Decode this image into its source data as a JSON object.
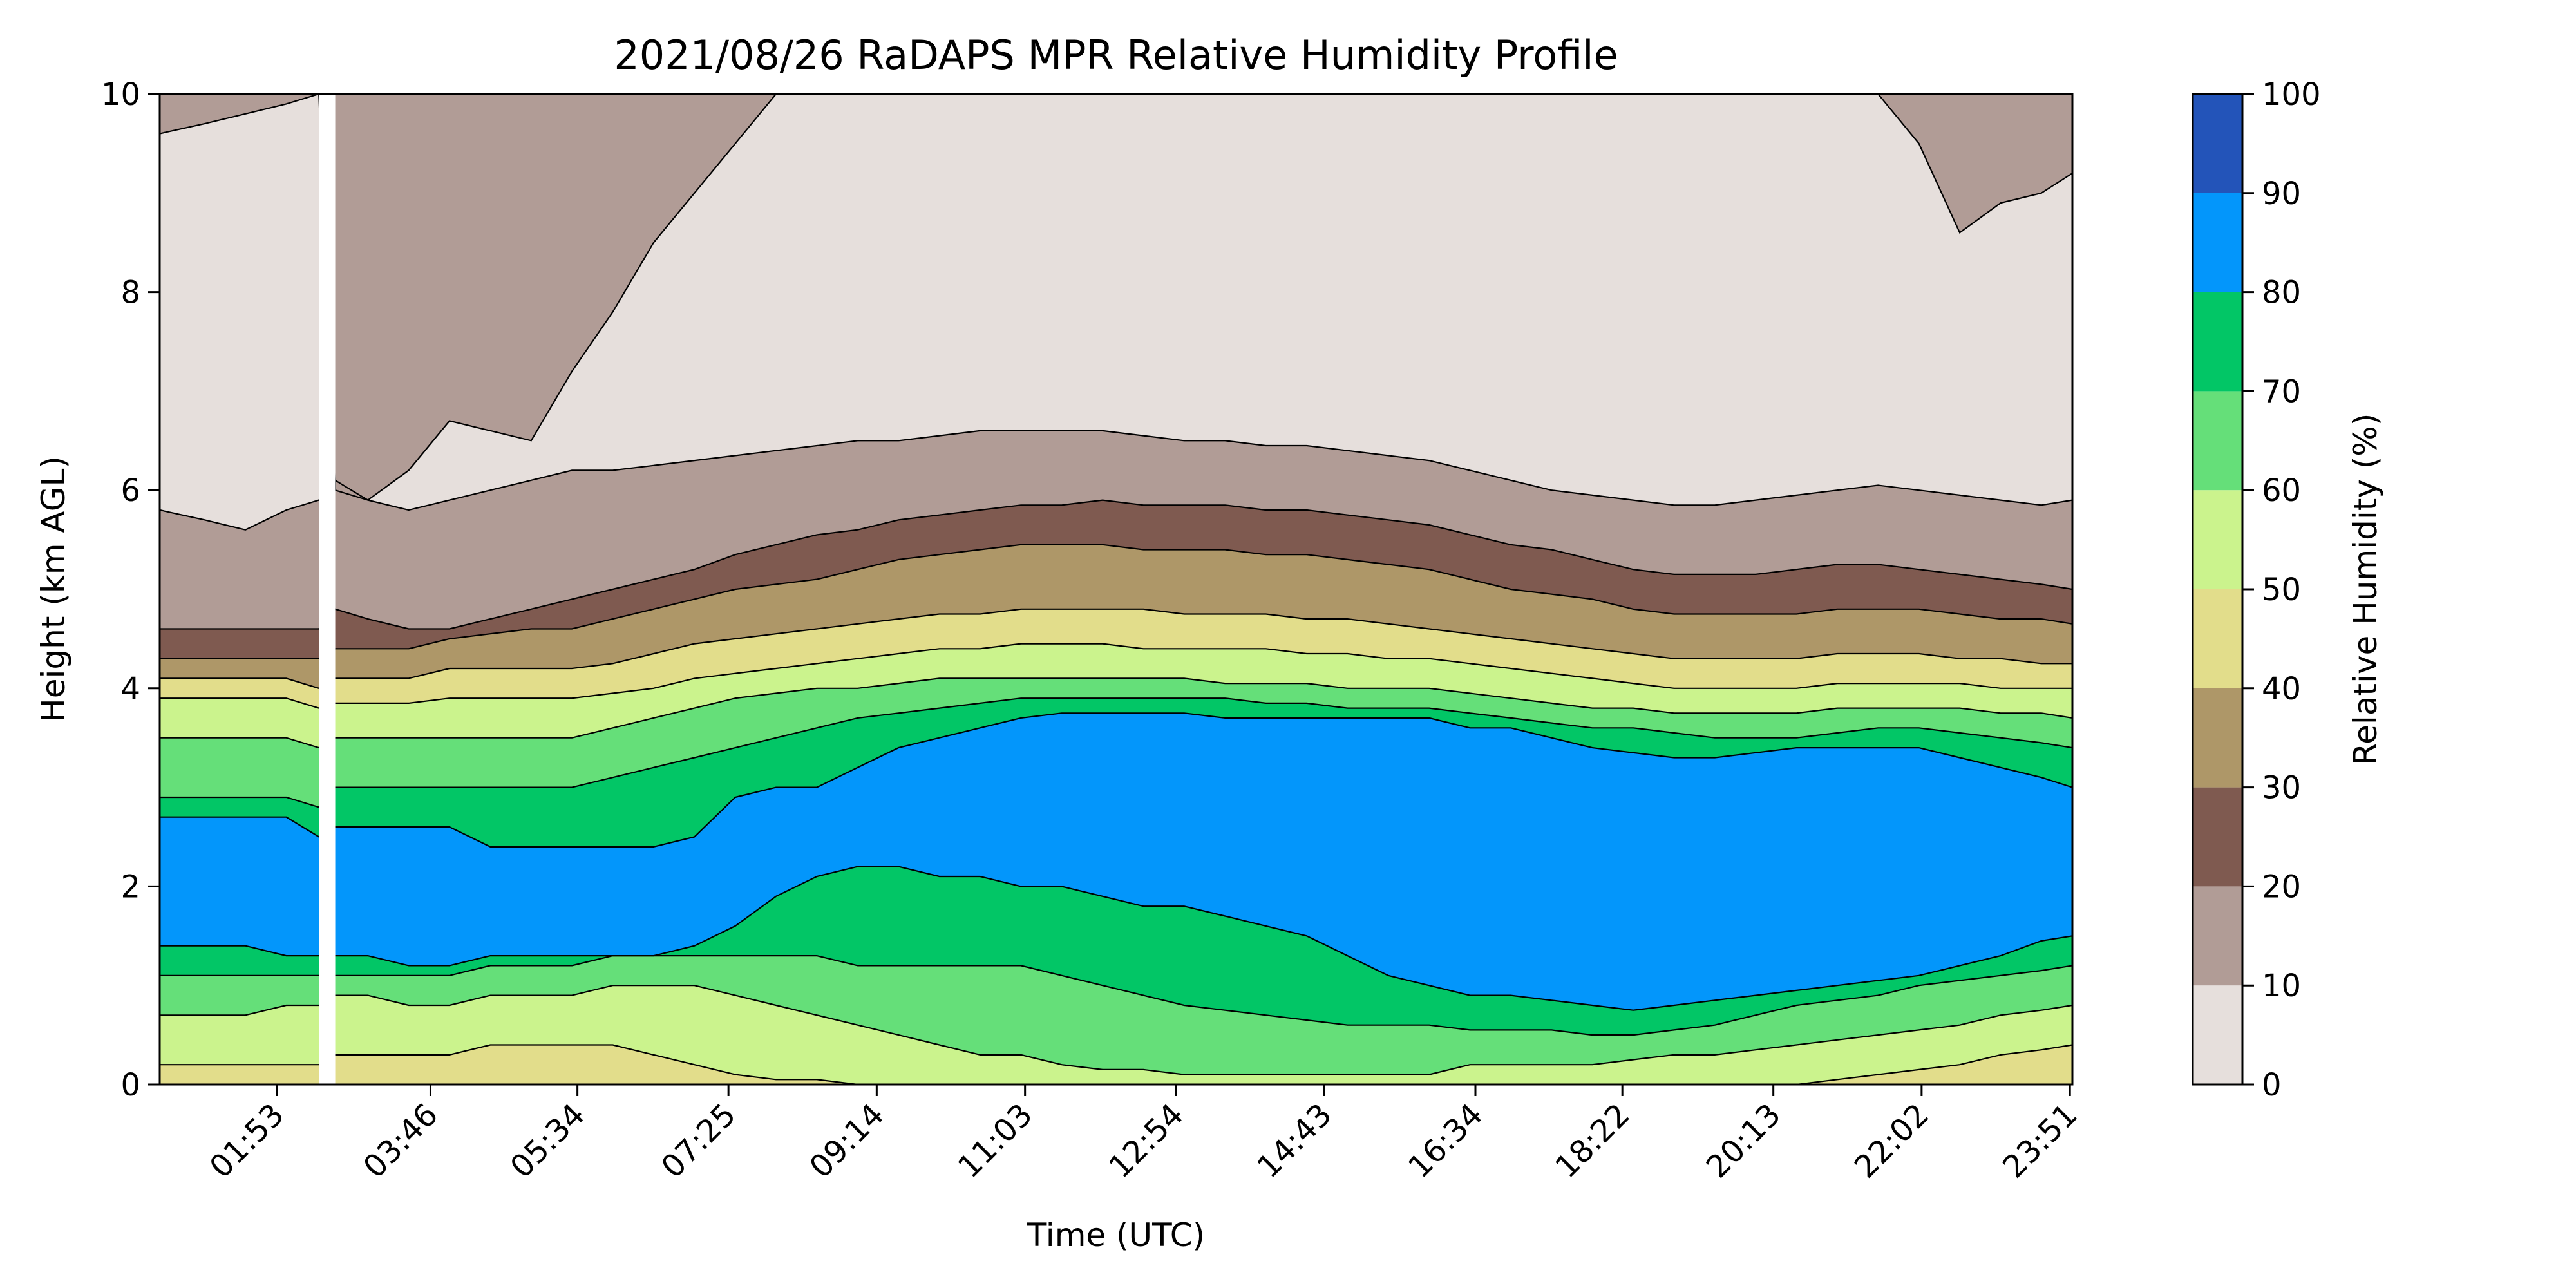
{
  "chart_data": {
    "type": "heatmap",
    "title": "2021/08/26 RaDAPS MPR Relative Humidity Profile",
    "xlabel": "Time (UTC)",
    "ylabel": "Height (km AGL)",
    "x_unit": "hours UTC",
    "xlim": [
      0.45,
      23.88
    ],
    "ylim": [
      0,
      10
    ],
    "x_ticks": [
      {
        "label": "01:53",
        "value": 1.883
      },
      {
        "label": "03:46",
        "value": 3.767
      },
      {
        "label": "05:34",
        "value": 5.567
      },
      {
        "label": "07:25",
        "value": 7.417
      },
      {
        "label": "09:14",
        "value": 9.233
      },
      {
        "label": "11:03",
        "value": 11.05
      },
      {
        "label": "12:54",
        "value": 12.9
      },
      {
        "label": "14:43",
        "value": 14.717
      },
      {
        "label": "16:34",
        "value": 16.567
      },
      {
        "label": "18:22",
        "value": 18.367
      },
      {
        "label": "20:13",
        "value": 20.217
      },
      {
        "label": "22:02",
        "value": 22.033
      },
      {
        "label": "23:51",
        "value": 23.85
      }
    ],
    "y_ticks": [
      0,
      2,
      4,
      6,
      8,
      10
    ],
    "colorbar": {
      "label": "Relative Humidity (%)",
      "levels": [
        0,
        10,
        20,
        30,
        40,
        50,
        60,
        70,
        80,
        90,
        100
      ],
      "colors": [
        "#e6dfdc",
        "#b19c96",
        "#7f5a50",
        "#ae9768",
        "#e2dd8b",
        "#cbf38d",
        "#65df79",
        "#02c666",
        "#0396fb",
        "#2354b9"
      ]
    },
    "data_gap_hours": [
      2.4,
      2.6
    ],
    "x_times": [
      0.45,
      1.0,
      1.5,
      2.0,
      2.4,
      2.6,
      3.0,
      3.5,
      4.0,
      4.5,
      5.0,
      5.5,
      6.0,
      6.5,
      7.0,
      7.5,
      8.0,
      8.5,
      9.0,
      9.5,
      10.0,
      10.5,
      11.0,
      11.5,
      12.0,
      12.5,
      13.0,
      13.5,
      14.0,
      14.5,
      15.0,
      15.5,
      16.0,
      16.5,
      17.0,
      17.5,
      18.0,
      18.5,
      19.0,
      19.5,
      20.0,
      20.5,
      21.0,
      21.5,
      22.0,
      22.5,
      23.0,
      23.5,
      23.88
    ],
    "contour_boundaries_km": [
      {
        "rh": 90,
        "lower": [
          1.4,
          1.4,
          1.4,
          1.3,
          1.3,
          1.3,
          1.3,
          1.2,
          1.2,
          1.3,
          1.3,
          1.3,
          1.3,
          1.3,
          1.4,
          1.6,
          1.9,
          2.1,
          2.2,
          2.2,
          2.1,
          2.1,
          2.0,
          2.0,
          1.9,
          1.8,
          1.8,
          1.7,
          1.6,
          1.5,
          1.3,
          1.1,
          1.0,
          0.9,
          0.9,
          0.85,
          0.8,
          0.75,
          0.8,
          0.85,
          0.9,
          0.95,
          1.0,
          1.05,
          1.1,
          1.2,
          1.3,
          1.45,
          1.5
        ],
        "upper": [
          2.7,
          2.7,
          2.7,
          2.7,
          2.5,
          2.6,
          2.6,
          2.6,
          2.6,
          2.4,
          2.4,
          2.4,
          2.4,
          2.4,
          2.5,
          2.9,
          3.0,
          3.0,
          3.2,
          3.4,
          3.5,
          3.6,
          3.7,
          3.75,
          3.75,
          3.75,
          3.75,
          3.7,
          3.7,
          3.7,
          3.7,
          3.7,
          3.7,
          3.6,
          3.6,
          3.5,
          3.4,
          3.35,
          3.3,
          3.3,
          3.35,
          3.4,
          3.4,
          3.4,
          3.4,
          3.3,
          3.2,
          3.1,
          3.0
        ]
      },
      {
        "rh": 80,
        "lower": [
          1.1,
          1.1,
          1.1,
          1.1,
          1.1,
          1.1,
          1.1,
          1.1,
          1.1,
          1.2,
          1.2,
          1.2,
          1.3,
          1.3,
          1.3,
          1.3,
          1.3,
          1.3,
          1.2,
          1.2,
          1.2,
          1.2,
          1.2,
          1.1,
          1.0,
          0.9,
          0.8,
          0.75,
          0.7,
          0.65,
          0.6,
          0.6,
          0.6,
          0.55,
          0.55,
          0.55,
          0.5,
          0.5,
          0.55,
          0.6,
          0.7,
          0.8,
          0.85,
          0.9,
          1.0,
          1.05,
          1.1,
          1.15,
          1.2
        ],
        "upper": [
          2.9,
          2.9,
          2.9,
          2.9,
          2.8,
          3.0,
          3.0,
          3.0,
          3.0,
          3.0,
          3.0,
          3.0,
          3.1,
          3.2,
          3.3,
          3.4,
          3.5,
          3.6,
          3.7,
          3.75,
          3.8,
          3.85,
          3.9,
          3.9,
          3.9,
          3.9,
          3.9,
          3.9,
          3.85,
          3.85,
          3.8,
          3.8,
          3.8,
          3.75,
          3.7,
          3.65,
          3.6,
          3.6,
          3.55,
          3.5,
          3.5,
          3.5,
          3.55,
          3.6,
          3.6,
          3.55,
          3.5,
          3.45,
          3.4
        ]
      },
      {
        "rh": 70,
        "lower": [
          0.7,
          0.7,
          0.7,
          0.8,
          0.8,
          0.9,
          0.9,
          0.8,
          0.8,
          0.9,
          0.9,
          0.9,
          1.0,
          1.0,
          1.0,
          0.9,
          0.8,
          0.7,
          0.6,
          0.5,
          0.4,
          0.3,
          0.3,
          0.2,
          0.15,
          0.15,
          0.1,
          0.1,
          0.1,
          0.1,
          0.1,
          0.1,
          0.1,
          0.2,
          0.2,
          0.2,
          0.2,
          0.25,
          0.3,
          0.3,
          0.35,
          0.4,
          0.45,
          0.5,
          0.55,
          0.6,
          0.7,
          0.75,
          0.8
        ],
        "upper": [
          3.5,
          3.5,
          3.5,
          3.5,
          3.4,
          3.5,
          3.5,
          3.5,
          3.5,
          3.5,
          3.5,
          3.5,
          3.6,
          3.7,
          3.8,
          3.9,
          3.95,
          4.0,
          4.0,
          4.05,
          4.1,
          4.1,
          4.1,
          4.1,
          4.1,
          4.1,
          4.1,
          4.05,
          4.05,
          4.05,
          4.0,
          4.0,
          4.0,
          3.95,
          3.9,
          3.85,
          3.8,
          3.8,
          3.75,
          3.75,
          3.75,
          3.75,
          3.8,
          3.8,
          3.8,
          3.8,
          3.75,
          3.75,
          3.7
        ]
      },
      {
        "rh": 60,
        "lower": [
          0.2,
          0.2,
          0.2,
          0.2,
          0.2,
          0.3,
          0.3,
          0.3,
          0.3,
          0.4,
          0.4,
          0.4,
          0.4,
          0.3,
          0.2,
          0.1,
          0.05,
          0.05,
          0.0,
          0.0,
          0.0,
          0.0,
          0.0,
          0.0,
          0.0,
          0.0,
          0.0,
          0.0,
          0.0,
          0.0,
          0.0,
          0.0,
          0.0,
          0.0,
          0.0,
          0.0,
          0.0,
          0.0,
          0.0,
          0.0,
          0.0,
          0.0,
          0.05,
          0.1,
          0.15,
          0.2,
          0.3,
          0.35,
          0.4
        ],
        "upper": [
          3.9,
          3.9,
          3.9,
          3.9,
          3.8,
          3.85,
          3.85,
          3.85,
          3.9,
          3.9,
          3.9,
          3.9,
          3.95,
          4.0,
          4.1,
          4.15,
          4.2,
          4.25,
          4.3,
          4.35,
          4.4,
          4.4,
          4.45,
          4.45,
          4.45,
          4.4,
          4.4,
          4.4,
          4.4,
          4.35,
          4.35,
          4.3,
          4.3,
          4.25,
          4.2,
          4.15,
          4.1,
          4.05,
          4.0,
          4.0,
          4.0,
          4.0,
          4.05,
          4.05,
          4.05,
          4.05,
          4.0,
          4.0,
          4.0
        ]
      },
      {
        "rh": 50,
        "lower": [
          0.0,
          0.0,
          0.0,
          0.0,
          0.0,
          0.0,
          0.0,
          0.0,
          0.0,
          0.0,
          0.0,
          0.0,
          0.0,
          0.0,
          0.0,
          0.0,
          0.0,
          0.0,
          0.0,
          0.0,
          0.0,
          0.0,
          0.0,
          0.0,
          0.0,
          0.0,
          0.0,
          0.0,
          0.0,
          0.0,
          0.0,
          0.0,
          0.0,
          0.0,
          0.0,
          0.0,
          0.0,
          0.0,
          0.0,
          0.0,
          0.0,
          0.0,
          0.0,
          0.0,
          0.0,
          0.0,
          0.0,
          0.0,
          0.0
        ],
        "upper": [
          4.1,
          4.1,
          4.1,
          4.1,
          4.0,
          4.1,
          4.1,
          4.1,
          4.2,
          4.2,
          4.2,
          4.2,
          4.25,
          4.35,
          4.45,
          4.5,
          4.55,
          4.6,
          4.65,
          4.7,
          4.75,
          4.75,
          4.8,
          4.8,
          4.8,
          4.8,
          4.75,
          4.75,
          4.75,
          4.7,
          4.7,
          4.65,
          4.6,
          4.55,
          4.5,
          4.45,
          4.4,
          4.35,
          4.3,
          4.3,
          4.3,
          4.3,
          4.35,
          4.35,
          4.35,
          4.3,
          4.3,
          4.25,
          4.25
        ]
      },
      {
        "rh": 40,
        "upper": [
          4.3,
          4.3,
          4.3,
          4.3,
          4.3,
          4.4,
          4.4,
          4.4,
          4.5,
          4.55,
          4.6,
          4.6,
          4.7,
          4.8,
          4.9,
          5.0,
          5.05,
          5.1,
          5.2,
          5.3,
          5.35,
          5.4,
          5.45,
          5.45,
          5.45,
          5.4,
          5.4,
          5.4,
          5.35,
          5.35,
          5.3,
          5.25,
          5.2,
          5.1,
          5.0,
          4.95,
          4.9,
          4.8,
          4.75,
          4.75,
          4.75,
          4.75,
          4.8,
          4.8,
          4.8,
          4.75,
          4.7,
          4.7,
          4.65
        ]
      },
      {
        "rh": 30,
        "upper": [
          4.6,
          4.6,
          4.6,
          4.6,
          4.6,
          4.8,
          4.7,
          4.6,
          4.6,
          4.7,
          4.8,
          4.9,
          5.0,
          5.1,
          5.2,
          5.35,
          5.45,
          5.55,
          5.6,
          5.7,
          5.75,
          5.8,
          5.85,
          5.85,
          5.9,
          5.85,
          5.85,
          5.85,
          5.8,
          5.8,
          5.75,
          5.7,
          5.65,
          5.55,
          5.45,
          5.4,
          5.3,
          5.2,
          5.15,
          5.15,
          5.15,
          5.2,
          5.25,
          5.25,
          5.2,
          5.15,
          5.1,
          5.05,
          5.0
        ]
      },
      {
        "rh": 20,
        "upper": [
          5.8,
          5.7,
          5.6,
          5.8,
          5.9,
          6.1,
          5.9,
          5.8,
          5.9,
          6.0,
          6.1,
          6.2,
          6.2,
          6.25,
          6.3,
          6.35,
          6.4,
          6.45,
          6.5,
          6.5,
          6.55,
          6.6,
          6.6,
          6.6,
          6.6,
          6.55,
          6.5,
          6.5,
          6.45,
          6.45,
          6.4,
          6.35,
          6.3,
          6.2,
          6.1,
          6.0,
          5.95,
          5.9,
          5.85,
          5.85,
          5.9,
          5.95,
          6.0,
          6.05,
          6.0,
          5.95,
          5.9,
          5.85,
          5.9
        ]
      },
      {
        "rh": 10,
        "upper": [
          9.6,
          9.7,
          9.8,
          9.9,
          10.0,
          6.0,
          5.9,
          6.2,
          6.7,
          6.6,
          6.5,
          7.2,
          7.8,
          8.5,
          9.0,
          9.5,
          10.0,
          10.0,
          10.0,
          10.0,
          10.0,
          10.0,
          10.0,
          10.0,
          10.0,
          10.0,
          10.0,
          10.0,
          10.0,
          10.0,
          10.0,
          10.0,
          10.0,
          10.0,
          10.0,
          10.0,
          10.0,
          10.0,
          10.0,
          10.0,
          10.0,
          10.0,
          10.0,
          10.0,
          9.5,
          8.6,
          8.9,
          9.0,
          9.2
        ]
      }
    ]
  }
}
